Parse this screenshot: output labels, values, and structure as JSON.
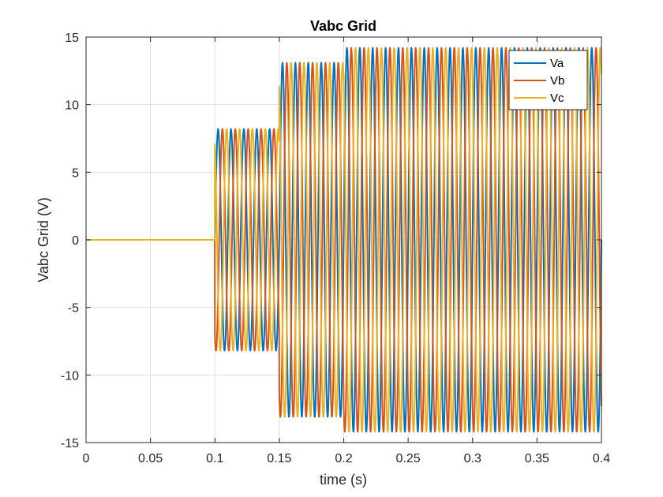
{
  "chart_data": {
    "type": "line",
    "title": "Vabc Grid",
    "xlabel": "time (s)",
    "ylabel": "Vabc Grid (V)",
    "xlim": [
      0,
      0.4
    ],
    "ylim": [
      -15,
      15
    ],
    "xticks": [
      0,
      0.05,
      0.1,
      0.15,
      0.2,
      0.25,
      0.3,
      0.35,
      0.4
    ],
    "xtick_labels": [
      "0",
      "0.05",
      "0.1",
      "0.15",
      "0.2",
      "0.25",
      "0.3",
      "0.35",
      "0.4"
    ],
    "yticks": [
      -15,
      -10,
      -5,
      0,
      5,
      10,
      15
    ],
    "ytick_labels": [
      "-15",
      "-10",
      "-5",
      "0",
      "5",
      "10",
      "15"
    ],
    "grid": true,
    "legend_position": "top-right",
    "frequency_hz": 100,
    "segments": [
      {
        "t_start": 0,
        "t_end": 0.1,
        "amplitude": 0
      },
      {
        "t_start": 0.1,
        "t_end": 0.15,
        "amplitude": 8.2
      },
      {
        "t_start": 0.15,
        "t_end": 0.2,
        "amplitude": 13.1
      },
      {
        "t_start": 0.2,
        "t_end": 0.4,
        "amplitude": 14.2
      }
    ],
    "series": [
      {
        "name": "Va",
        "color": "#0072BD",
        "phase_deg": 0
      },
      {
        "name": "Vb",
        "color": "#D95319",
        "phase_deg": -120
      },
      {
        "name": "Vc",
        "color": "#EDB120",
        "phase_deg": 120
      }
    ]
  }
}
